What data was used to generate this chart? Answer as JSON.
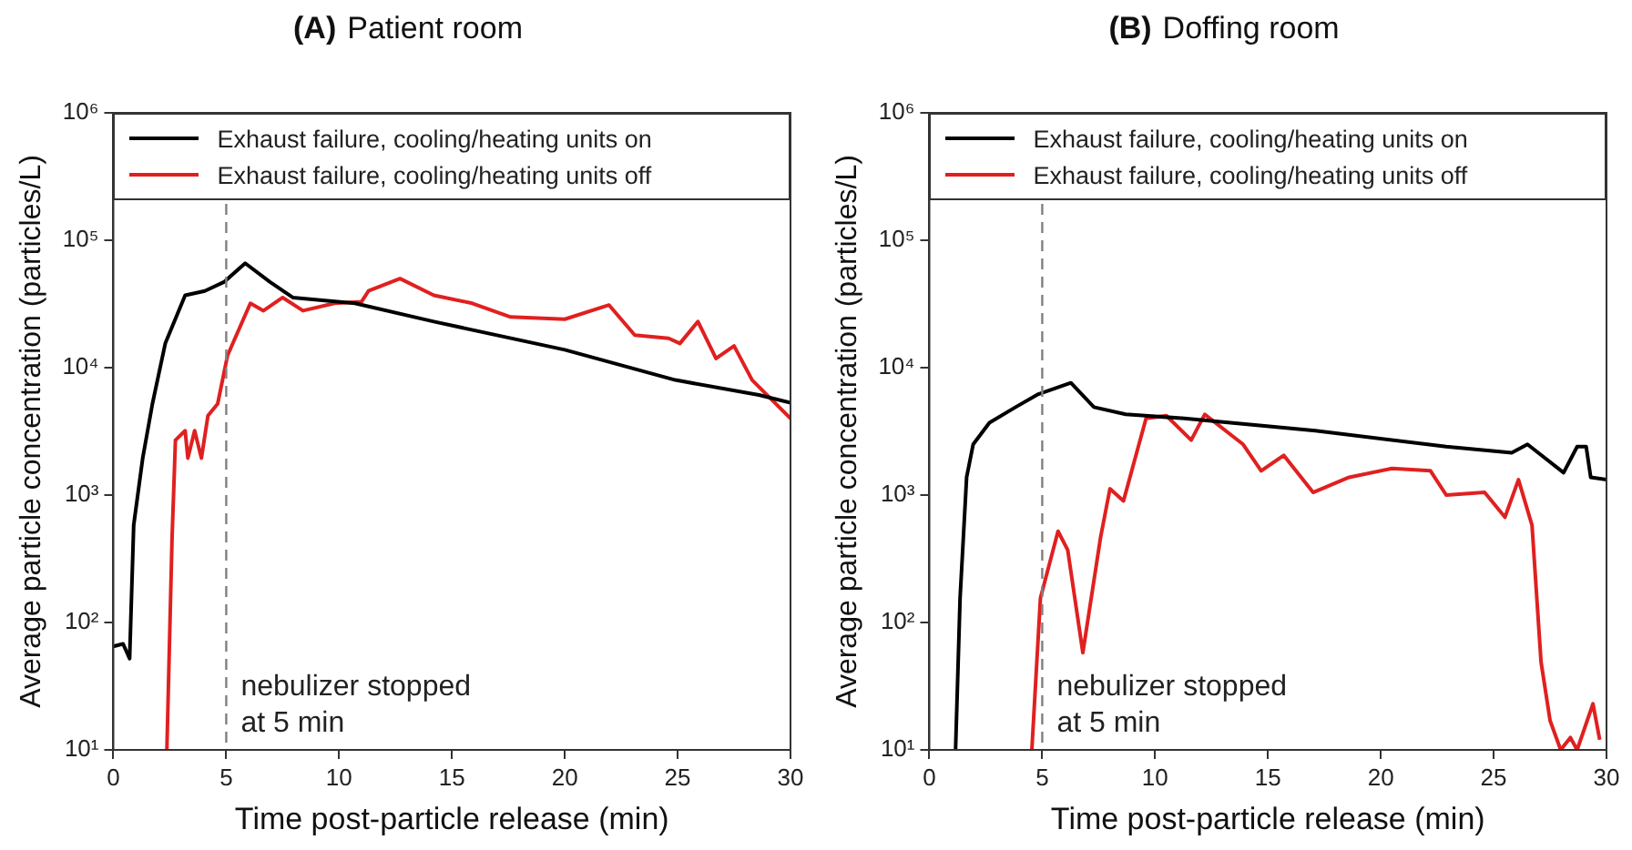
{
  "chart_data": [
    {
      "type": "line",
      "title": "(A)",
      "subtitle": "Patient room",
      "xlabel": "Time post-particle release (min)",
      "ylabel": "Average particle concentration (particles/L)",
      "log": "y",
      "grid": false,
      "legend": "top",
      "marker": "none",
      "line_style": "solid",
      "xlim": [
        0,
        30
      ],
      "xticks": [
        0,
        5,
        10,
        15,
        20,
        25,
        30
      ],
      "ylim": [
        10,
        1000000
      ],
      "yticks": [
        {
          "value": 10,
          "label": "10¹"
        },
        {
          "value": 100,
          "label": "10²"
        },
        {
          "value": 1000,
          "label": "10³"
        },
        {
          "value": 10000,
          "label": "10⁴"
        },
        {
          "value": 100000,
          "label": "10⁵"
        },
        {
          "value": 1000000,
          "label": "10⁶"
        }
      ],
      "ref_lines": [
        {
          "axis": "x",
          "value": 5,
          "label": "nebulizer stopped at 5 min",
          "color": "#808080",
          "line_style": "dashed"
        }
      ],
      "series": [
        {
          "name": "Exhaust failure, cooling/heating units on",
          "color": "#000000",
          "x": [
            0,
            0.43,
            0.72,
            0.9,
            1.3,
            1.73,
            2.3,
            3.18,
            4.05,
            4.9,
            5.84,
            6.94,
            7.95,
            10.7,
            14.2,
            20,
            24.9,
            28.6,
            30
          ],
          "values": [
            65,
            68,
            52,
            580,
            1950,
            5200,
            15500,
            37000,
            40000,
            47000,
            66000,
            47000,
            35500,
            32000,
            23000,
            13800,
            8000,
            6100,
            5300
          ]
        },
        {
          "name": "Exhaust failure, cooling/heating units off",
          "color": "#e02020",
          "x": [
            2.37,
            2.6,
            2.75,
            3.18,
            3.3,
            3.6,
            3.9,
            4.19,
            4.62,
            5.06,
            6.07,
            6.65,
            7.5,
            8.4,
            9.8,
            11,
            11.3,
            12.7,
            14.2,
            15.9,
            17.6,
            20,
            21.96,
            23.1,
            24.6,
            25.1,
            25.9,
            26.7,
            27.5,
            28.3,
            30
          ],
          "values": [
            10,
            460,
            2700,
            3200,
            1950,
            3200,
            1950,
            4200,
            5200,
            12500,
            32000,
            28000,
            35500,
            28000,
            32000,
            33000,
            40000,
            50000,
            37000,
            32000,
            25000,
            24000,
            31000,
            18000,
            17000,
            15500,
            23000,
            11800,
            14800,
            8000,
            4000
          ]
        }
      ]
    },
    {
      "type": "line",
      "title": "(B)",
      "subtitle": "Doffing room",
      "xlabel": "Time post-particle release (min)",
      "ylabel": "Average particle concentration (particles/L)",
      "log": "y",
      "grid": false,
      "legend": "top",
      "marker": "none",
      "line_style": "solid",
      "xlim": [
        0,
        30
      ],
      "xticks": [
        0,
        5,
        10,
        15,
        20,
        25,
        30
      ],
      "ylim": [
        10,
        1000000
      ],
      "yticks": [
        {
          "value": 10,
          "label": "10¹"
        },
        {
          "value": 100,
          "label": "10²"
        },
        {
          "value": 1000,
          "label": "10³"
        },
        {
          "value": 10000,
          "label": "10⁴"
        },
        {
          "value": 100000,
          "label": "10⁵"
        },
        {
          "value": 1000000,
          "label": "10⁶"
        }
      ],
      "ref_lines": [
        {
          "axis": "x",
          "value": 5,
          "label": "nebulizer stopped at 5 min",
          "color": "#808080",
          "line_style": "dashed"
        }
      ],
      "series": [
        {
          "name": "Exhaust failure, cooling/heating units on",
          "color": "#000000",
          "x": [
            1.16,
            1.36,
            1.65,
            1.94,
            2.66,
            3.82,
            4.83,
            6.27,
            7.29,
            8.7,
            11.3,
            17.1,
            22.9,
            25.8,
            26.5,
            28.1,
            28.7,
            29.1,
            29.3,
            30
          ],
          "values": [
            10,
            155,
            1380,
            2500,
            3700,
            4900,
            6200,
            7600,
            4900,
            4300,
            4000,
            3200,
            2400,
            2150,
            2500,
            1500,
            2400,
            2400,
            1380,
            1320
          ]
        },
        {
          "name": "Exhaust failure, cooling/heating units off",
          "color": "#e02020",
          "x": [
            4.54,
            4.92,
            5.7,
            6.13,
            6.8,
            7.58,
            8,
            8.6,
            9.6,
            10.5,
            11.6,
            12.2,
            13.9,
            14.7,
            15.7,
            17,
            18.6,
            20.5,
            22.2,
            22.9,
            24.6,
            25.5,
            26.1,
            26.7,
            27.1,
            27.5,
            27.97,
            28.4,
            28.7,
            29.4,
            29.7
          ],
          "values": [
            10,
            155,
            520,
            370,
            58,
            460,
            1120,
            900,
            4000,
            4200,
            2700,
            4300,
            2500,
            1550,
            2050,
            1050,
            1380,
            1620,
            1550,
            1000,
            1050,
            670,
            1320,
            580,
            49,
            17,
            10,
            12.5,
            10,
            23,
            12
          ]
        }
      ]
    }
  ]
}
